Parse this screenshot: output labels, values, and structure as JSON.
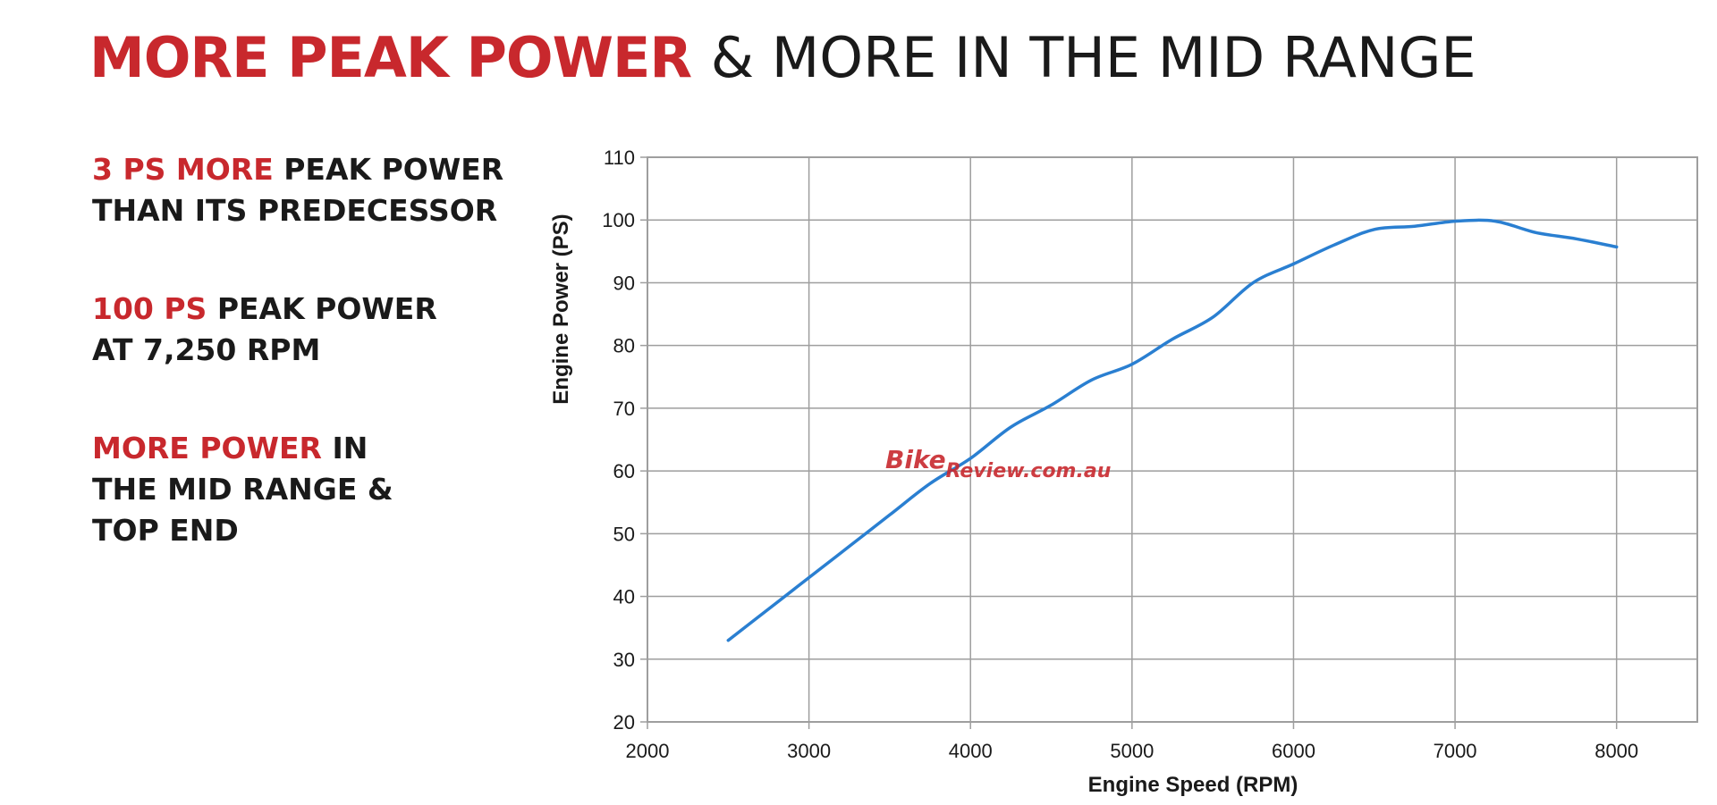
{
  "headline": {
    "red_part": "MORE PEAK POWER",
    "dark_part": "& MORE IN THE MID RANGE"
  },
  "facts": [
    {
      "red": "3 PS MORE",
      "rest": "PEAK POWER",
      "line2": "THAN ITS PREDECESSOR"
    },
    {
      "red": "100 PS",
      "rest": "PEAK POWER",
      "line2": "AT 7,250 RPM"
    },
    {
      "red": "MORE POWER",
      "rest": "IN",
      "line2": "THE MID RANGE &",
      "line3": "TOP END"
    }
  ],
  "watermark": {
    "part1": "Bike",
    "part2": "Review.com.au"
  },
  "colors": {
    "accent_red": "#c8282d",
    "line_blue": "#2a7fd1",
    "grid": "#9e9e9e",
    "text_dark": "#1a1a1a"
  },
  "chart_data": {
    "type": "line",
    "title": "",
    "xlabel": "Engine Speed (RPM)",
    "ylabel": "Engine Power (PS)",
    "xlim": [
      2000,
      8500
    ],
    "ylim": [
      20,
      110
    ],
    "xticks": [
      2000,
      3000,
      4000,
      5000,
      6000,
      7000,
      8000
    ],
    "yticks": [
      20,
      30,
      40,
      50,
      60,
      70,
      80,
      90,
      100,
      110
    ],
    "grid": true,
    "series": [
      {
        "x": [
          2500,
          2800,
          3000,
          3250,
          3500,
          3750,
          4000,
          4250,
          4500,
          4750,
          5000,
          5250,
          5500,
          5750,
          6000,
          6250,
          6500,
          6750,
          7000,
          7250,
          7500,
          7750,
          8000
        ],
        "values": [
          33,
          39,
          43,
          48,
          53,
          58,
          62,
          67,
          70.5,
          74.5,
          77,
          81,
          84.5,
          90,
          93,
          96,
          98.5,
          99,
          99.8,
          99.8,
          98,
          97,
          95.7
        ]
      }
    ]
  }
}
